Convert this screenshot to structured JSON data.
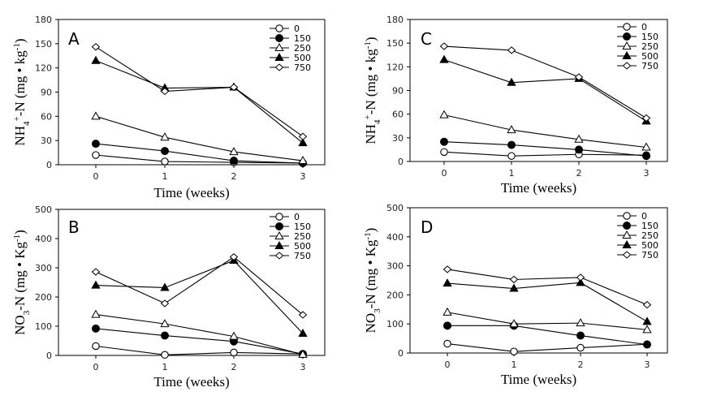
{
  "chart_data": [
    {
      "type": "line",
      "panel": "A",
      "x": [
        0,
        1,
        2,
        3
      ],
      "xticks": [
        "0",
        "1",
        "2",
        "3"
      ],
      "xlabel": "Time (weeks)",
      "ylabel": {
        "main": "NH",
        "sub": "4",
        "sup": "+",
        "rest": "-N  (mg • kg",
        "unit_sup": "-1",
        "close": ")"
      },
      "ylim": [
        0,
        180
      ],
      "yticks": [
        0,
        30,
        60,
        90,
        120,
        150,
        180
      ],
      "series": [
        {
          "name": "0",
          "marker": "circle-open",
          "values": [
            12,
            4,
            3,
            2
          ]
        },
        {
          "name": "150",
          "marker": "circle-filled",
          "values": [
            26,
            17,
            5,
            2
          ]
        },
        {
          "name": "250",
          "marker": "triangle-open",
          "values": [
            60,
            34,
            16,
            5
          ]
        },
        {
          "name": "500",
          "marker": "triangle-filled",
          "values": [
            129,
            95,
            96,
            27
          ]
        },
        {
          "name": "750",
          "marker": "diamond-open",
          "values": [
            146,
            91,
            96,
            35
          ]
        }
      ]
    },
    {
      "type": "line",
      "panel": "B",
      "x": [
        0,
        1,
        2,
        3
      ],
      "xticks": [
        "0",
        "1",
        "2",
        "3"
      ],
      "xlabel": "Time (weeks)",
      "ylabel": {
        "main": "NO",
        "sub": "3",
        "sup": "",
        "rest": "-N  (mg • Kg",
        "unit_sup": "-1",
        "close": ")"
      },
      "ylim": [
        0,
        500
      ],
      "yticks": [
        0,
        100,
        200,
        300,
        400,
        500
      ],
      "series": [
        {
          "name": "0",
          "marker": "circle-open",
          "values": [
            32,
            2,
            10,
            5
          ]
        },
        {
          "name": "150",
          "marker": "circle-filled",
          "values": [
            92,
            68,
            48,
            5
          ]
        },
        {
          "name": "250",
          "marker": "triangle-open",
          "values": [
            140,
            108,
            65,
            3
          ]
        },
        {
          "name": "500",
          "marker": "triangle-filled",
          "values": [
            240,
            232,
            325,
            75
          ]
        },
        {
          "name": "750",
          "marker": "diamond-open",
          "values": [
            286,
            178,
            337,
            139
          ]
        }
      ]
    },
    {
      "type": "line",
      "panel": "C",
      "x": [
        0,
        1,
        2,
        3
      ],
      "xticks": [
        "0",
        "1",
        "2",
        "3"
      ],
      "xlabel": "Time (weeks)",
      "ylabel": {
        "main": "NH",
        "sub": "4",
        "sup": "+",
        "rest": "-N  (mg • kg",
        "unit_sup": "-1",
        "close": ")"
      },
      "ylim": [
        0,
        180
      ],
      "yticks": [
        0,
        30,
        60,
        90,
        120,
        150,
        180
      ],
      "series": [
        {
          "name": "0",
          "marker": "circle-open",
          "values": [
            12,
            7,
            9,
            8
          ]
        },
        {
          "name": "150",
          "marker": "circle-filled",
          "values": [
            25,
            21,
            15,
            7
          ]
        },
        {
          "name": "250",
          "marker": "triangle-open",
          "values": [
            59,
            40,
            28,
            18
          ]
        },
        {
          "name": "500",
          "marker": "triangle-filled",
          "values": [
            129,
            100,
            105,
            51
          ]
        },
        {
          "name": "750",
          "marker": "diamond-open",
          "values": [
            146,
            141,
            107,
            55
          ]
        }
      ]
    },
    {
      "type": "line",
      "panel": "D",
      "x": [
        0,
        1,
        2,
        3
      ],
      "xticks": [
        "0",
        "1",
        "2",
        "3"
      ],
      "xlabel": "Time (weeks)",
      "ylabel": {
        "main": "NO",
        "sub": "3",
        "sup": "",
        "rest": "-N  (mg • Kg",
        "unit_sup": "-1",
        "close": ")"
      },
      "ylim": [
        0,
        500
      ],
      "yticks": [
        0,
        100,
        200,
        300,
        400,
        500
      ],
      "series": [
        {
          "name": "0",
          "marker": "circle-open",
          "values": [
            32,
            5,
            18,
            30
          ]
        },
        {
          "name": "150",
          "marker": "circle-filled",
          "values": [
            94,
            94,
            60,
            29
          ]
        },
        {
          "name": "250",
          "marker": "triangle-open",
          "values": [
            140,
            100,
            103,
            80
          ]
        },
        {
          "name": "500",
          "marker": "triangle-filled",
          "values": [
            240,
            222,
            242,
            108
          ]
        },
        {
          "name": "750",
          "marker": "diamond-open",
          "values": [
            288,
            253,
            260,
            166
          ]
        }
      ]
    }
  ]
}
